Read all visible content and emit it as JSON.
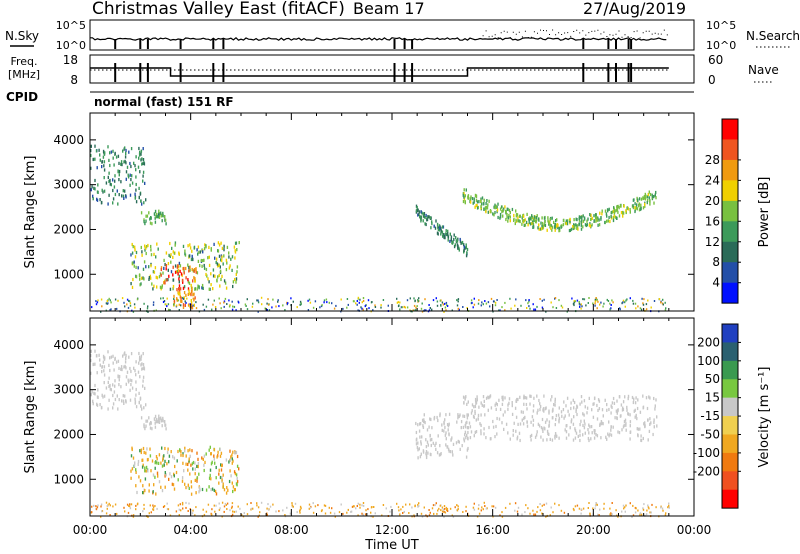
{
  "header": {
    "title": "Christmas Valley East (fitACF)",
    "beam": "Beam 17",
    "date": "27/Aug/2019"
  },
  "strip_labels": {
    "nsky": "N.Sky",
    "nsky_top": "10^5",
    "nsky_bottom": "10^0",
    "nsearch": "N.Search",
    "nsearch_top": "10^5",
    "nsearch_bottom": "10^0",
    "freq": "Freq.",
    "freq_unit": "[MHz]",
    "freq_top": "18",
    "freq_bottom": "8",
    "nave": "Nave",
    "nave_top": "60",
    "nave_bottom": "0",
    "cpid": "CPID",
    "cpid_value": "normal (fast) 151 RF"
  },
  "colors": {
    "power": [
      "#0010ff",
      "#234fa8",
      "#2a6b58",
      "#3c9a5a",
      "#78c040",
      "#f0d000",
      "#f09a10",
      "#ef5520",
      "#ff0000"
    ],
    "velocity": [
      "#ff0000",
      "#f05020",
      "#f07a10",
      "#f0a820",
      "#f0d050",
      "#c8c8c8",
      "#78c840",
      "#3a9a50",
      "#2a6070",
      "#2040c0"
    ]
  },
  "chart_data": [
    {
      "type": "heatmap",
      "name": "power",
      "ylabel": "Slant Range [km]",
      "yticks": [
        1000,
        2000,
        3000,
        4000
      ],
      "ylim": [
        180,
        4600
      ],
      "xlim_hours": [
        0,
        24
      ],
      "colorbar": {
        "label": "Power [dB]",
        "ticks": [
          "4",
          "8",
          "12",
          "16",
          "20",
          "24",
          "28"
        ],
        "range": [
          0,
          32
        ]
      },
      "echo_regions": [
        {
          "t": [
            0.0,
            2.2
          ],
          "r": [
            2600,
            3900
          ],
          "power": 10
        },
        {
          "t": [
            2.0,
            3.0
          ],
          "r": [
            2150,
            2450
          ],
          "power": 14
        },
        {
          "t": [
            1.6,
            5.9
          ],
          "r": [
            700,
            1750
          ],
          "power": 17
        },
        {
          "t": [
            2.8,
            4.2
          ],
          "r": [
            650,
            1250
          ],
          "power": 27
        },
        {
          "t": [
            3.3,
            4.2
          ],
          "r": [
            280,
            700
          ],
          "power": 22
        },
        {
          "t": [
            12.9,
            15.0
          ],
          "r": [
            1500,
            2500
          ],
          "power": 10
        },
        {
          "t": [
            14.8,
            22.5
          ],
          "r": [
            1900,
            2900
          ],
          "power": 15
        },
        {
          "t": [
            0.0,
            23.0
          ],
          "r": [
            180,
            500
          ],
          "power": 12
        }
      ]
    },
    {
      "type": "heatmap",
      "name": "velocity",
      "ylabel": "Slant Range [km]",
      "xlabel": "Time UT",
      "xticks": [
        "00:00",
        "04:00",
        "08:00",
        "12:00",
        "16:00",
        "20:00",
        "00:00"
      ],
      "yticks": [
        1000,
        2000,
        3000,
        4000
      ],
      "ylim": [
        180,
        4600
      ],
      "xlim_hours": [
        0,
        24
      ],
      "colorbar": {
        "label": "Velocity [m s⁻¹]",
        "ticks": [
          "200",
          "100",
          "50",
          "15",
          "-15",
          "-50",
          "-100",
          "-200"
        ],
        "range": [
          -250,
          250
        ]
      },
      "echo_regions": [
        {
          "t": [
            0.0,
            2.2
          ],
          "r": [
            2600,
            3900
          ],
          "velocity": 0
        },
        {
          "t": [
            2.0,
            3.0
          ],
          "r": [
            2150,
            2450
          ],
          "velocity": 0
        },
        {
          "t": [
            1.6,
            5.9
          ],
          "r": [
            700,
            1750
          ],
          "velocity": -40
        },
        {
          "t": [
            12.9,
            15.0
          ],
          "r": [
            1500,
            2500
          ],
          "velocity": 0
        },
        {
          "t": [
            14.8,
            22.5
          ],
          "r": [
            1900,
            2900
          ],
          "velocity": 0
        },
        {
          "t": [
            0.0,
            23.0
          ],
          "r": [
            180,
            500
          ],
          "velocity": -30
        }
      ]
    }
  ]
}
